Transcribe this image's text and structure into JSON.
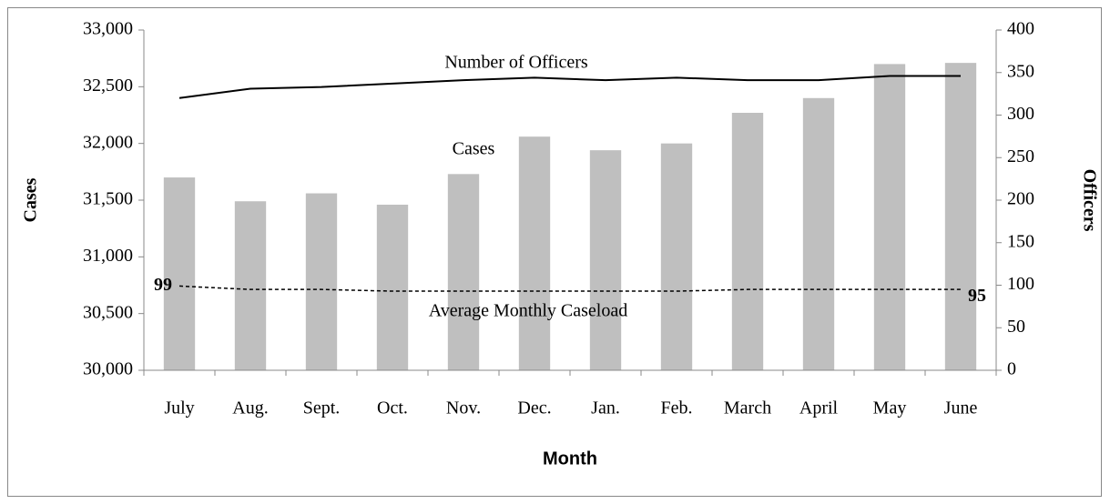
{
  "chart_data": {
    "type": "bar",
    "x_label": "Month",
    "y_label": "Cases",
    "y2_label": "Officers",
    "categories": [
      "July",
      "Aug.",
      "Sept.",
      "Oct.",
      "Nov.",
      "Dec.",
      "Jan.",
      "Feb.",
      "March",
      "April",
      "May",
      "June"
    ],
    "series": [
      {
        "name": "Cases",
        "type": "bar",
        "color": "#bfbfbf",
        "values": [
          31700,
          31490,
          31560,
          31460,
          31730,
          32060,
          31940,
          32000,
          32270,
          32400,
          32700,
          32710
        ]
      },
      {
        "name": "Number of Officers",
        "type": "line",
        "axis": "y2",
        "color": "#000000",
        "dashed": false,
        "values": [
          320,
          331,
          333,
          337,
          341,
          344,
          341,
          344,
          341,
          341,
          346,
          346
        ]
      },
      {
        "name": "Average Monthly Caseload",
        "type": "line",
        "axis": "y2",
        "color": "#000000",
        "dashed": true,
        "values": [
          99,
          95,
          95,
          93,
          93,
          93,
          93,
          93,
          95,
          95,
          95,
          95
        ],
        "labeled_points": [
          0,
          11
        ]
      }
    ],
    "ylim": [
      30000,
      33000
    ],
    "yticks": [
      {
        "value": 30000,
        "label": "30,000"
      },
      {
        "value": 30500,
        "label": "30,500"
      },
      {
        "value": 31000,
        "label": "31,000"
      },
      {
        "value": 31500,
        "label": "31,500"
      },
      {
        "value": 32000,
        "label": "32,000"
      },
      {
        "value": 32500,
        "label": "32,500"
      },
      {
        "value": 33000,
        "label": "33,000"
      }
    ],
    "y2lim": [
      0,
      400
    ],
    "y2ticks": [
      0,
      50,
      100,
      150,
      200,
      250,
      300,
      350,
      400
    ],
    "grid": false
  }
}
